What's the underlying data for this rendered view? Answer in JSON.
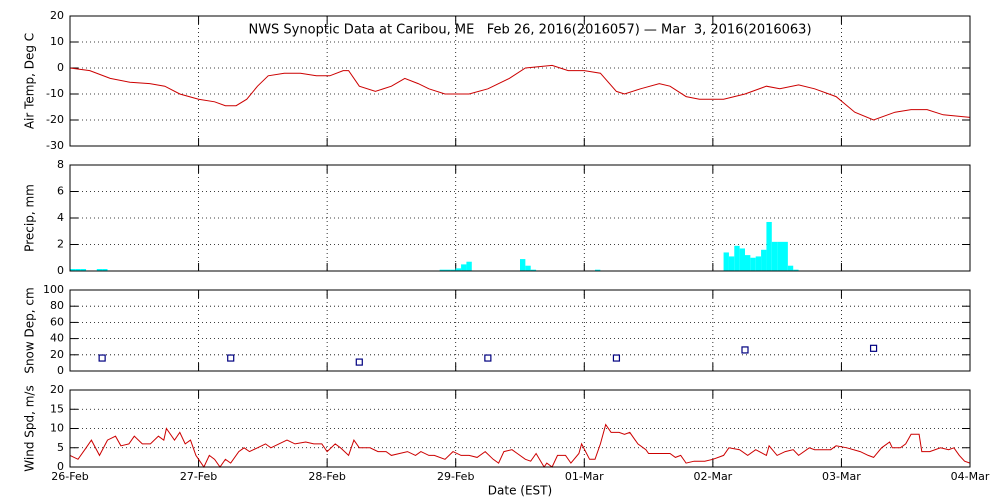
{
  "chart_data": [
    {
      "type": "line",
      "title": "NWS Synoptic Data at Caribou, ME   Feb 26, 2016(2016057) — Mar  3, 2016(2016063)",
      "ylabel": "Air Temp, Deg C",
      "color": "#cc0000",
      "xlim": [
        0,
        168
      ],
      "ylim": [
        -30,
        20
      ],
      "yticks": [
        -30,
        -20,
        -10,
        0,
        10,
        20
      ],
      "grid": true,
      "x": [
        0,
        3.7,
        7.5,
        11.2,
        14.9,
        17.7,
        20.5,
        24,
        27,
        29,
        31,
        33,
        35,
        37,
        40,
        43,
        46,
        48.5,
        51,
        52,
        54,
        57,
        60,
        62.5,
        65,
        67,
        70,
        74.5,
        78,
        82,
        85,
        90,
        93,
        96,
        99,
        102,
        103.5,
        106.5,
        110,
        112,
        115,
        117.5,
        122,
        126,
        130,
        132.5,
        136,
        139,
        143,
        146.5,
        150,
        154,
        157,
        160,
        163,
        168
      ],
      "values": [
        0,
        -1,
        -4,
        -5.5,
        -6,
        -7,
        -10,
        -12,
        -13,
        -14.5,
        -14.5,
        -12,
        -7,
        -3,
        -2,
        -2,
        -3,
        -3,
        -1,
        -1,
        -7,
        -9,
        -7,
        -4,
        -6,
        -8,
        -10,
        -10,
        -8,
        -4,
        0,
        1,
        -1,
        -1,
        -2,
        -9,
        -10,
        -8,
        -6,
        -7,
        -11,
        -12,
        -12,
        -10,
        -7,
        -8,
        -6.5,
        -8,
        -11,
        -17,
        -20,
        -17,
        -16,
        -16,
        -18,
        -19
      ]
    },
    {
      "type": "bar",
      "ylabel": "Precip, mm",
      "color": "#00ffff",
      "xlim": [
        0,
        168
      ],
      "ylim": [
        0,
        8
      ],
      "yticks": [
        0,
        2,
        4,
        6,
        8
      ],
      "grid": true,
      "x": [
        0,
        1,
        2,
        5,
        6,
        69,
        70,
        71,
        72,
        73,
        74,
        84,
        85,
        86,
        98,
        122,
        123,
        124,
        125,
        126,
        127,
        128,
        129,
        130,
        131,
        132,
        133,
        134,
        135
      ],
      "values": [
        0.15,
        0.15,
        0.15,
        0.15,
        0.15,
        0.1,
        0.1,
        0.1,
        0.2,
        0.5,
        0.7,
        0.9,
        0.4,
        0.1,
        0.1,
        1.4,
        1.1,
        1.9,
        1.7,
        1.2,
        1.0,
        1.1,
        1.6,
        3.7,
        2.2,
        2.2,
        2.2,
        0.4,
        0.1
      ]
    },
    {
      "type": "scatter",
      "ylabel": "Snow Dep, cm",
      "color": "#000080",
      "xlim": [
        0,
        168
      ],
      "ylim": [
        0,
        100
      ],
      "yticks": [
        0,
        20,
        40,
        60,
        80,
        100
      ],
      "grid": true,
      "x": [
        6,
        30,
        54,
        78,
        102,
        126,
        150
      ],
      "values": [
        16,
        16,
        11,
        16,
        16,
        26,
        28
      ]
    },
    {
      "type": "line",
      "ylabel": "Wind Spd, m/s",
      "xlabel": "Date (EST)",
      "color": "#cc0000",
      "xlim": [
        0,
        168
      ],
      "ylim": [
        0,
        20
      ],
      "yticks": [
        0,
        5,
        10,
        15,
        20
      ],
      "grid": true,
      "xticks": [
        {
          "value": 0,
          "label": "26-Feb"
        },
        {
          "value": 24,
          "label": "27-Feb"
        },
        {
          "value": 48,
          "label": "28-Feb"
        },
        {
          "value": 72,
          "label": "29-Feb"
        },
        {
          "value": 96,
          "label": "01-Mar"
        },
        {
          "value": 120,
          "label": "02-Mar"
        },
        {
          "value": 144,
          "label": "03-Mar"
        },
        {
          "value": 168,
          "label": "04-Mar"
        }
      ],
      "x": [
        0,
        1.5,
        3,
        4,
        5.5,
        7,
        8.5,
        9.5,
        11,
        12,
        13.5,
        15,
        16.5,
        17.5,
        18,
        19.5,
        20.5,
        21.5,
        22.5,
        23.5,
        24,
        25,
        26,
        27,
        28,
        29,
        30,
        31.5,
        32.5,
        33.5,
        35,
        36.5,
        37.5,
        39,
        40.5,
        42,
        44,
        45.5,
        47,
        48,
        49.5,
        50.5,
        52,
        53,
        54,
        56,
        57.5,
        59,
        60,
        61.5,
        63,
        64.5,
        65.5,
        67,
        68,
        70,
        71.5,
        73,
        74.5,
        76,
        77.5,
        79,
        80,
        81,
        82.5,
        83.5,
        85,
        86,
        87,
        88.5,
        89,
        90,
        91,
        92.5,
        93.5,
        95,
        95.5,
        97,
        98,
        99,
        100,
        101,
        102.5,
        103.5,
        104.5,
        106,
        107.5,
        108,
        110,
        112,
        113,
        114,
        115,
        116.5,
        118.5,
        120,
        122,
        123,
        125,
        126.5,
        128,
        130,
        130.5,
        132,
        133.5,
        135,
        136,
        138,
        139,
        140.5,
        142,
        143,
        145,
        147.5,
        149,
        150,
        151.5,
        153,
        153.5,
        155,
        156,
        157,
        158.5,
        159,
        160.5,
        162.5,
        164,
        165,
        166,
        167,
        168
      ],
      "values": [
        3,
        2,
        5,
        7,
        3,
        7,
        8,
        5.5,
        6,
        8,
        6,
        6,
        8,
        7,
        10,
        7,
        9,
        6,
        7,
        3,
        2,
        0,
        3,
        2,
        0,
        2,
        1,
        4,
        5,
        4,
        5,
        6,
        5,
        6,
        7,
        6,
        6.5,
        6,
        6,
        4,
        6,
        5,
        3,
        7,
        5,
        5,
        4,
        4,
        3,
        3.5,
        4,
        3,
        4,
        3,
        3,
        2,
        4,
        3,
        3,
        2.5,
        4,
        2,
        1,
        4,
        4.5,
        3.5,
        2,
        1.5,
        3.5,
        0,
        1,
        0,
        3,
        3,
        1,
        3.5,
        6,
        2,
        2,
        6,
        11,
        9,
        9,
        8.5,
        9,
        6,
        4.5,
        3.5,
        3.5,
        3.5,
        2.5,
        3,
        1,
        1.5,
        1.5,
        2,
        3,
        5,
        4.5,
        3,
        4.5,
        3,
        5.5,
        3,
        4,
        4.5,
        3,
        5,
        4.5,
        4.5,
        4.5,
        5.5,
        5,
        4,
        3,
        2.5,
        5,
        6.5,
        5,
        5,
        6,
        8.5,
        8.5,
        4,
        4,
        5,
        4.5,
        5,
        3,
        1.5,
        1
      ]
    }
  ]
}
